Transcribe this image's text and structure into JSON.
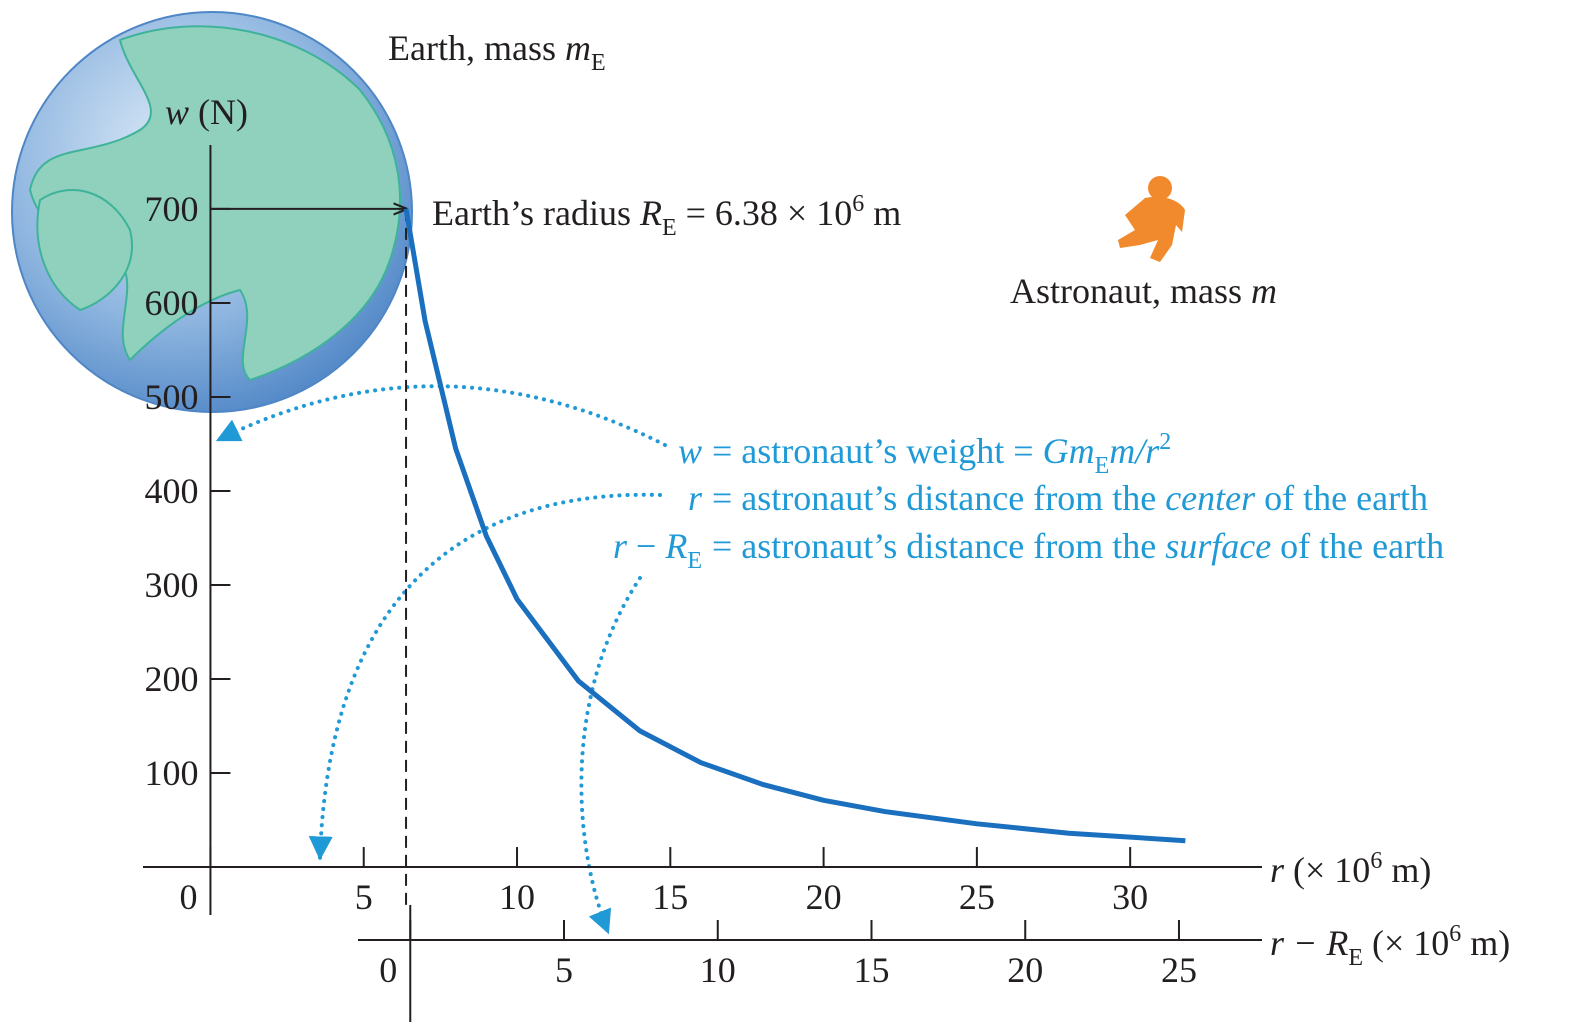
{
  "chart_data": {
    "type": "line",
    "y_label": [
      "w",
      " (N)"
    ],
    "x_label": [
      "r",
      " (× 10",
      "6",
      " m)"
    ],
    "x2_label": [
      "r − ",
      "R",
      "E",
      " (× 10",
      "6",
      " m)"
    ],
    "x": [
      6.38,
      7,
      8,
      9,
      10,
      12,
      14,
      16,
      18,
      20,
      22,
      25,
      28,
      31.8
    ],
    "values": [
      700,
      581,
      445,
      352,
      285,
      198,
      145,
      111,
      88,
      71,
      59,
      46,
      36,
      28
    ],
    "color": "#1a6fbf",
    "xlim": [
      -2.2,
      34.3
    ],
    "xticks": [
      0,
      5,
      10,
      15,
      20,
      25,
      30
    ],
    "x2lim": [
      -1.7,
      27.7
    ],
    "x2ticks": [
      0,
      5,
      10,
      15,
      20,
      25
    ],
    "ylim": [
      -51,
      768
    ],
    "yticks": [
      100,
      200,
      300,
      400,
      500,
      600,
      700
    ],
    "annotations": {
      "earth_mass": [
        "Earth, mass ",
        "m",
        "E"
      ],
      "earth_radius": [
        "Earth’s radius ",
        "R",
        "E",
        " = 6.38 × 10",
        "6",
        " m"
      ],
      "astronaut": [
        "Astronaut, mass ",
        "m"
      ],
      "definitions": [
        [
          "w",
          " = astronaut’s weight = ",
          "G",
          "m",
          "E",
          "m/",
          "r",
          "2"
        ],
        [
          "r",
          " = astronaut’s distance from the ",
          "center",
          " of the earth"
        ],
        [
          "r",
          " − ",
          "R",
          "E",
          " = astronaut’s distance from the ",
          "surface",
          " of the earth"
        ]
      ]
    }
  }
}
